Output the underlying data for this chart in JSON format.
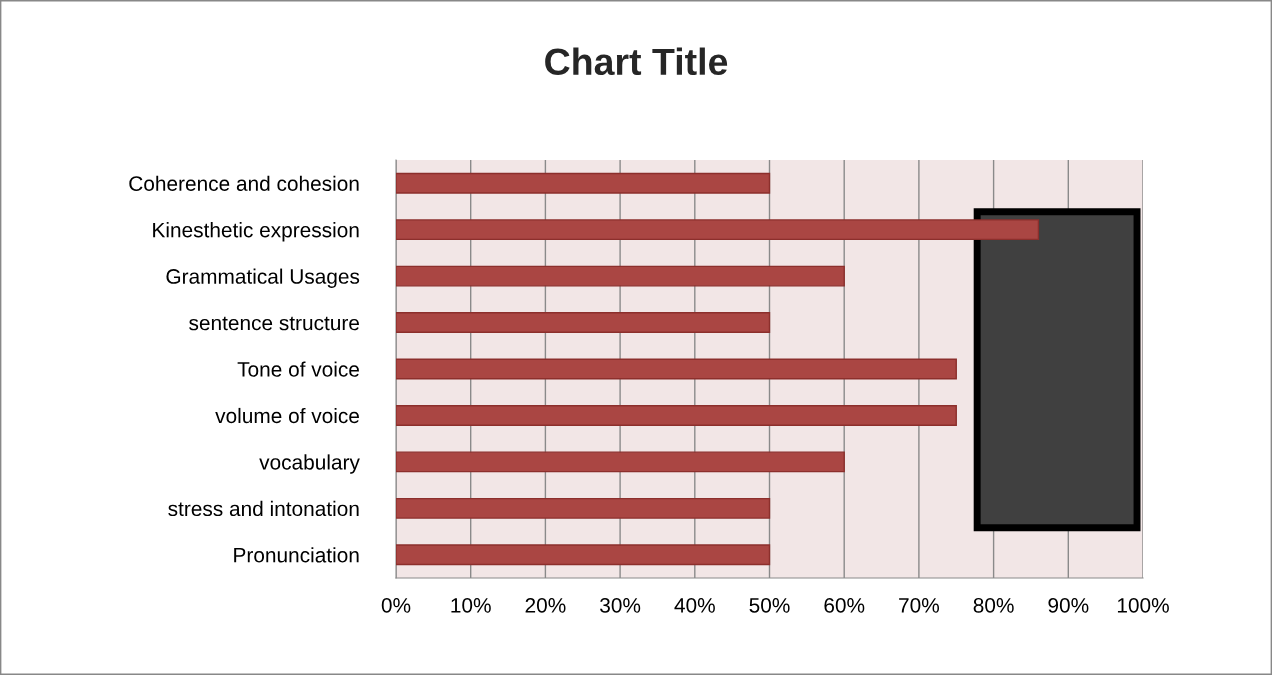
{
  "chart_data": {
    "type": "bar",
    "title": "Chart Title",
    "orientation": "horizontal",
    "categories": [
      "Coherence and cohesion",
      "Kinesthetic expression",
      "Grammatical Usages",
      "sentence structure",
      "Tone of voice",
      "volume of voice",
      "vocabulary",
      "stress and intonation",
      "Pronunciation"
    ],
    "values": [
      50,
      86,
      60,
      50,
      75,
      75,
      60,
      50,
      50
    ],
    "color": "#aa4643",
    "xlim": [
      0,
      100
    ],
    "xticks": [
      {
        "value": 0,
        "label": "0%"
      },
      {
        "value": 10,
        "label": "10%"
      },
      {
        "value": 20,
        "label": "20%"
      },
      {
        "value": 30,
        "label": "30%"
      },
      {
        "value": 40,
        "label": "40%"
      },
      {
        "value": 50,
        "label": "50%"
      },
      {
        "value": 60,
        "label": "60%"
      },
      {
        "value": 70,
        "label": "70%"
      },
      {
        "value": 80,
        "label": "80%"
      },
      {
        "value": 90,
        "label": "90%"
      },
      {
        "value": 100,
        "label": "100%"
      }
    ],
    "grid": "x"
  }
}
